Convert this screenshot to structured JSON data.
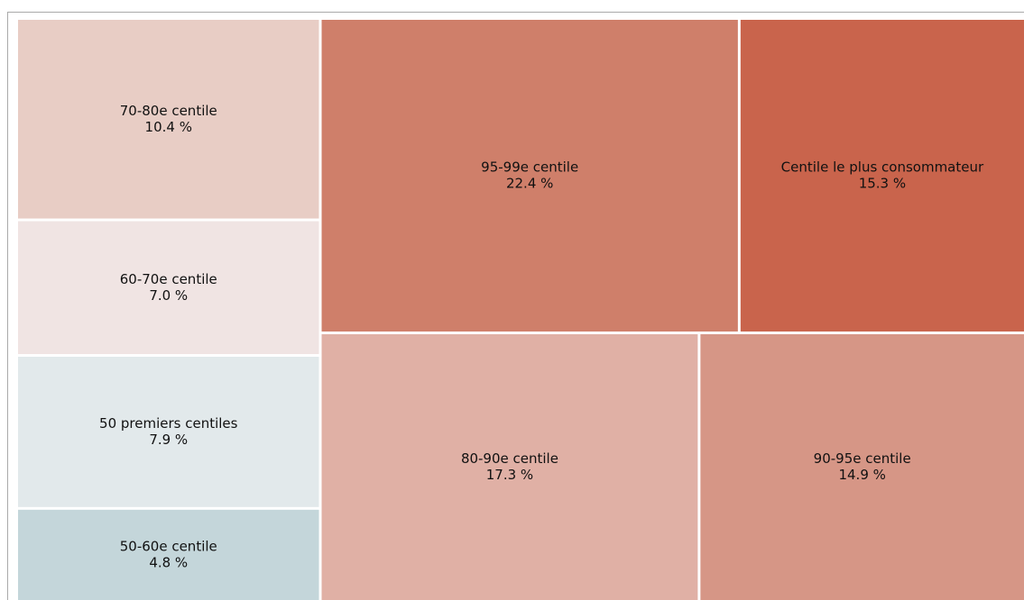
{
  "chart_data": {
    "type": "treemap",
    "categories": [
      "70-80e centile",
      "60-70e centile",
      "50 premiers centiles",
      "50-60e centile",
      "95-99e centile",
      "Centile le plus consommateur",
      "80-90e centile",
      "90-95e centile"
    ],
    "values": [
      10.4,
      7.0,
      7.9,
      4.8,
      22.4,
      15.3,
      17.3,
      14.9
    ],
    "value_labels": [
      "10.4 %",
      "7.0 %",
      "7.9 %",
      "4.8 %",
      "22.4 %",
      "15.3 %",
      "17.3 %",
      "14.9 %"
    ],
    "colors": [
      "#e8cdc5",
      "#f0e4e3",
      "#e2e9eb",
      "#c4d6da",
      "#cf7f6a",
      "#c9644c",
      "#e0b0a5",
      "#d69686"
    ]
  }
}
